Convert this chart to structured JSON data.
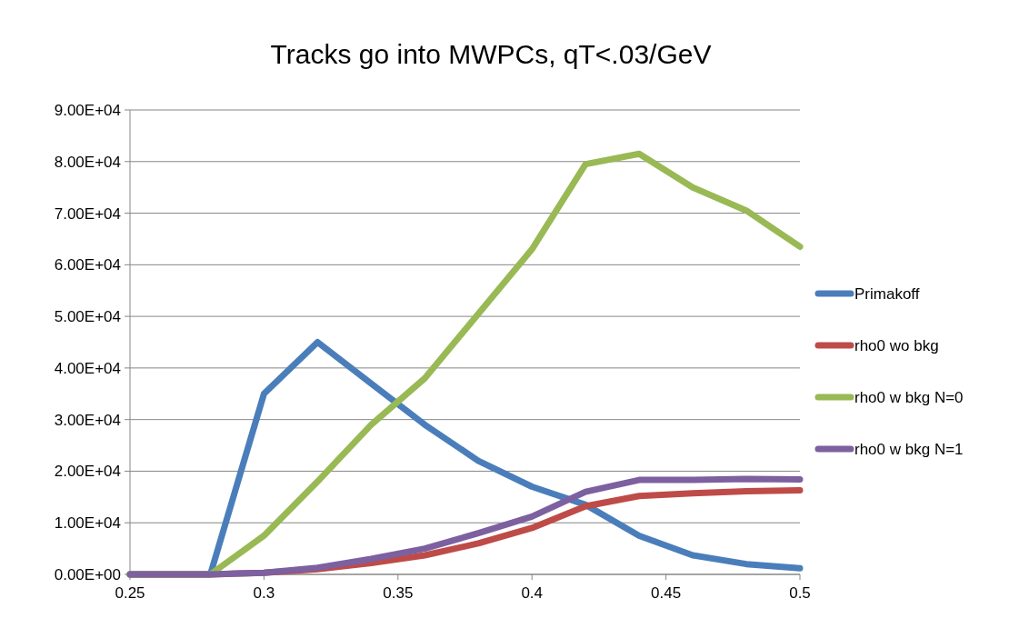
{
  "chart_data": {
    "type": "line",
    "title": "Tracks go into MWPCs, qT<.03/GeV",
    "x": [
      0.25,
      0.28,
      0.3,
      0.32,
      0.34,
      0.36,
      0.38,
      0.4,
      0.42,
      0.44,
      0.46,
      0.48,
      0.5
    ],
    "series": [
      {
        "name": "Primakoff",
        "color": "#4a7ebb",
        "values": [
          0,
          0,
          35000,
          45000,
          37000,
          29000,
          22000,
          17000,
          13500,
          7500,
          3700,
          2000,
          1200
        ]
      },
      {
        "name": "rho0 wo bkg",
        "color": "#be4b48",
        "values": [
          0,
          0,
          300,
          1000,
          2200,
          3700,
          6000,
          9000,
          13200,
          15200,
          15700,
          16100,
          16300
        ]
      },
      {
        "name": "rho0 w bkg N=0",
        "color": "#98b954",
        "values": [
          0,
          0,
          7500,
          18000,
          29000,
          38000,
          50500,
          63000,
          79500,
          81500,
          75000,
          70500,
          63500
        ]
      },
      {
        "name": "rho0 w bkg N=1",
        "color": "#7d60a0",
        "values": [
          0,
          0,
          300,
          1300,
          3000,
          5000,
          8000,
          11200,
          16000,
          18300,
          18300,
          18500,
          18400
        ]
      }
    ],
    "xlim": [
      0.25,
      0.5
    ],
    "xticks": [
      0.25,
      0.3,
      0.35,
      0.4,
      0.45,
      0.5
    ],
    "ylim": [
      0,
      90000
    ],
    "yticks": [
      {
        "value": 0,
        "label": "0.00E+00"
      },
      {
        "value": 10000,
        "label": "1.00E+04"
      },
      {
        "value": 20000,
        "label": "2.00E+04"
      },
      {
        "value": 30000,
        "label": "3.00E+04"
      },
      {
        "value": 40000,
        "label": "4.00E+04"
      },
      {
        "value": 50000,
        "label": "5.00E+04"
      },
      {
        "value": 60000,
        "label": "6.00E+04"
      },
      {
        "value": 70000,
        "label": "7.00E+04"
      },
      {
        "value": 80000,
        "label": "8.00E+04"
      },
      {
        "value": 90000,
        "label": "9.00E+04"
      }
    ],
    "grid": "y",
    "legend": "right",
    "marker": "none",
    "line_style": "solid"
  }
}
